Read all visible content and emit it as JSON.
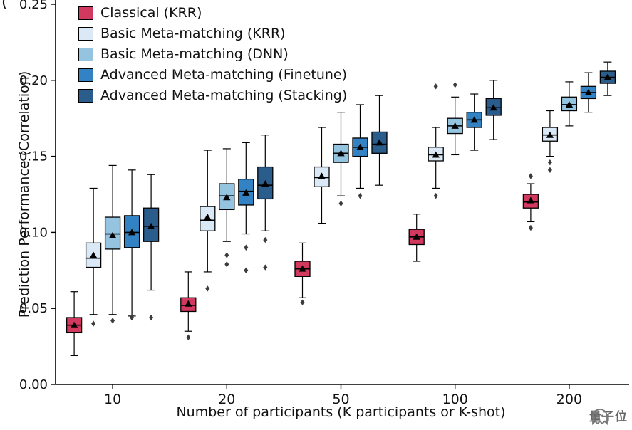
{
  "panel_label": "(",
  "watermark": {
    "text": "量子位",
    "icon": "ghost-logo"
  },
  "chart_data": {
    "type": "boxplot",
    "title": "",
    "xlabel": "Number of participants (K participants or K-shot)",
    "ylabel": "Prediction Performance (Correlation)",
    "ylim": [
      0.0,
      0.25
    ],
    "yticks": [
      0.0,
      0.05,
      0.1,
      0.15,
      0.2,
      0.25
    ],
    "categories": [
      "10",
      "20",
      "50",
      "100",
      "200"
    ],
    "legend_position": "upper-left",
    "grid": false,
    "mean_marker": "black-triangle",
    "outlier_marker": "diamond",
    "series": [
      {
        "name": "Classical (KRR)",
        "color": "#d1395f",
        "boxes": [
          {
            "lo": 0.019,
            "q1": 0.034,
            "med": 0.039,
            "q3": 0.044,
            "hi": 0.061,
            "mean": 0.039,
            "fliers": []
          },
          {
            "lo": 0.035,
            "q1": 0.048,
            "med": 0.052,
            "q3": 0.057,
            "hi": 0.074,
            "mean": 0.053,
            "fliers": [
              0.031
            ]
          },
          {
            "lo": 0.057,
            "q1": 0.071,
            "med": 0.076,
            "q3": 0.081,
            "hi": 0.093,
            "mean": 0.076,
            "fliers": [
              0.054
            ]
          },
          {
            "lo": 0.081,
            "q1": 0.092,
            "med": 0.097,
            "q3": 0.102,
            "hi": 0.112,
            "mean": 0.097,
            "fliers": []
          },
          {
            "lo": 0.107,
            "q1": 0.116,
            "med": 0.12,
            "q3": 0.125,
            "hi": 0.132,
            "mean": 0.121,
            "fliers": [
              0.103,
              0.137
            ]
          }
        ]
      },
      {
        "name": "Basic Meta-matching (KRR)",
        "color": "#dbe9f6",
        "boxes": [
          {
            "lo": 0.046,
            "q1": 0.077,
            "med": 0.083,
            "q3": 0.093,
            "hi": 0.129,
            "mean": 0.085,
            "fliers": [
              0.04
            ]
          },
          {
            "lo": 0.074,
            "q1": 0.101,
            "med": 0.108,
            "q3": 0.117,
            "hi": 0.154,
            "mean": 0.11,
            "fliers": [
              0.063
            ]
          },
          {
            "lo": 0.106,
            "q1": 0.13,
            "med": 0.136,
            "q3": 0.143,
            "hi": 0.169,
            "mean": 0.137,
            "fliers": []
          },
          {
            "lo": 0.129,
            "q1": 0.147,
            "med": 0.151,
            "q3": 0.156,
            "hi": 0.169,
            "mean": 0.151,
            "fliers": [
              0.124,
              0.196
            ]
          },
          {
            "lo": 0.15,
            "q1": 0.16,
            "med": 0.164,
            "q3": 0.169,
            "hi": 0.18,
            "mean": 0.164,
            "fliers": [
              0.141,
              0.146
            ]
          }
        ]
      },
      {
        "name": "Basic Meta-matching (DNN)",
        "color": "#94c4e0",
        "boxes": [
          {
            "lo": 0.046,
            "q1": 0.089,
            "med": 0.099,
            "q3": 0.11,
            "hi": 0.144,
            "mean": 0.098,
            "fliers": [
              0.042
            ]
          },
          {
            "lo": 0.094,
            "q1": 0.115,
            "med": 0.124,
            "q3": 0.132,
            "hi": 0.155,
            "mean": 0.123,
            "fliers": [
              0.085,
              0.079
            ]
          },
          {
            "lo": 0.124,
            "q1": 0.146,
            "med": 0.152,
            "q3": 0.158,
            "hi": 0.179,
            "mean": 0.152,
            "fliers": [
              0.119
            ]
          },
          {
            "lo": 0.151,
            "q1": 0.165,
            "med": 0.17,
            "q3": 0.175,
            "hi": 0.189,
            "mean": 0.17,
            "fliers": [
              0.197
            ]
          },
          {
            "lo": 0.17,
            "q1": 0.18,
            "med": 0.184,
            "q3": 0.189,
            "hi": 0.199,
            "mean": 0.184,
            "fliers": []
          }
        ]
      },
      {
        "name": "Advanced Meta-matching (Finetune)",
        "color": "#3383c4",
        "boxes": [
          {
            "lo": 0.045,
            "q1": 0.09,
            "med": 0.1,
            "q3": 0.111,
            "hi": 0.141,
            "mean": 0.1,
            "fliers": [
              0.044
            ]
          },
          {
            "lo": 0.099,
            "q1": 0.118,
            "med": 0.127,
            "q3": 0.135,
            "hi": 0.159,
            "mean": 0.126,
            "fliers": [
              0.09,
              0.075
            ]
          },
          {
            "lo": 0.129,
            "q1": 0.15,
            "med": 0.156,
            "q3": 0.162,
            "hi": 0.184,
            "mean": 0.156,
            "fliers": [
              0.124
            ]
          },
          {
            "lo": 0.154,
            "q1": 0.169,
            "med": 0.174,
            "q3": 0.179,
            "hi": 0.191,
            "mean": 0.174,
            "fliers": []
          },
          {
            "lo": 0.179,
            "q1": 0.188,
            "med": 0.192,
            "q3": 0.196,
            "hi": 0.205,
            "mean": 0.192,
            "fliers": []
          }
        ]
      },
      {
        "name": "Advanced Meta-matching (Stacking)",
        "color": "#2a5d8c",
        "boxes": [
          {
            "lo": 0.062,
            "q1": 0.094,
            "med": 0.104,
            "q3": 0.116,
            "hi": 0.138,
            "mean": 0.104,
            "fliers": [
              0.044
            ]
          },
          {
            "lo": 0.101,
            "q1": 0.122,
            "med": 0.131,
            "q3": 0.143,
            "hi": 0.164,
            "mean": 0.132,
            "fliers": [
              0.095,
              0.077
            ]
          },
          {
            "lo": 0.131,
            "q1": 0.152,
            "med": 0.158,
            "q3": 0.166,
            "hi": 0.19,
            "mean": 0.159,
            "fliers": []
          },
          {
            "lo": 0.161,
            "q1": 0.177,
            "med": 0.182,
            "q3": 0.188,
            "hi": 0.2,
            "mean": 0.182,
            "fliers": []
          },
          {
            "lo": 0.19,
            "q1": 0.198,
            "med": 0.202,
            "q3": 0.206,
            "hi": 0.212,
            "mean": 0.202,
            "fliers": []
          }
        ]
      }
    ]
  }
}
